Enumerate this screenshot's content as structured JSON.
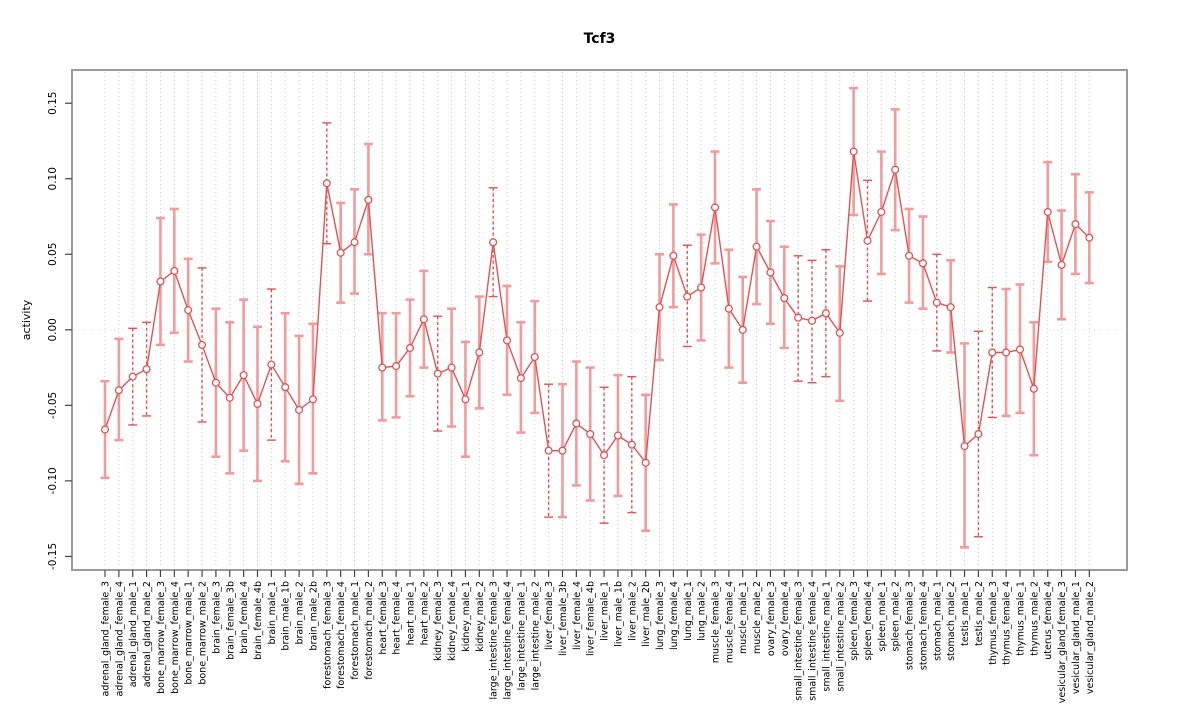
{
  "chart_data": {
    "type": "scatter",
    "subtype": "points-with-error-bars-connected-by-line",
    "title": "Tcf3",
    "xlabel": "",
    "ylabel": "activity",
    "ylim": [
      -0.159,
      0.172
    ],
    "yticks": [
      -0.15,
      -0.1,
      -0.05,
      0.0,
      0.05,
      0.1,
      0.15
    ],
    "grid": "dotted vertical gridline per category; dotted horizontal line at y=0",
    "legend": "none",
    "categories": [
      "adrenal_gland_female_3",
      "adrenal_gland_female_4",
      "adrenal_gland_male_1",
      "adrenal_gland_male_2",
      "bone_marrow_female_3",
      "bone_marrow_female_4",
      "bone_marrow_male_1",
      "bone_marrow_male_2",
      "brain_female_3",
      "brain_female_3b",
      "brain_female_4",
      "brain_female_4b",
      "brain_male_1",
      "brain_male_1b",
      "brain_male_2",
      "brain_male_2b",
      "forestomach_female_3",
      "forestomach_female_4",
      "forestomach_male_1",
      "forestomach_male_2",
      "heart_female_3",
      "heart_female_4",
      "heart_male_1",
      "heart_male_2",
      "kidney_female_3",
      "kidney_female_4",
      "kidney_male_1",
      "kidney_male_2",
      "large_intestine_female_3",
      "large_intestine_female_4",
      "large_intestine_male_1",
      "large_intestine_male_2",
      "liver_female_3",
      "liver_female_3b",
      "liver_female_4",
      "liver_female_4b",
      "liver_male_1",
      "liver_male_1b",
      "liver_male_2",
      "liver_male_2b",
      "lung_female_3",
      "lung_female_4",
      "lung_male_1",
      "lung_male_2",
      "muscle_female_3",
      "muscle_female_4",
      "muscle_male_1",
      "muscle_male_2",
      "ovary_female_3",
      "ovary_female_4",
      "small_intestine_female_3",
      "small_intestine_female_4",
      "small_intestine_male_1",
      "small_intestine_male_2",
      "spleen_female_3",
      "spleen_female_4",
      "spleen_male_1",
      "spleen_male_2",
      "stomach_female_3",
      "stomach_female_4",
      "stomach_male_1",
      "stomach_male_2",
      "testis_male_1",
      "testis_male_2",
      "thymus_female_3",
      "thymus_female_4",
      "thymus_male_1",
      "thymus_male_2",
      "uterus_female_4",
      "vesicular_gland_female_3",
      "vesicular_gland_male_1",
      "vesicular_gland_male_2"
    ],
    "values": [
      -0.066,
      -0.04,
      -0.031,
      -0.026,
      0.032,
      0.039,
      0.013,
      -0.01,
      -0.035,
      -0.045,
      -0.03,
      -0.049,
      -0.023,
      -0.038,
      -0.053,
      -0.046,
      0.097,
      0.051,
      0.058,
      0.086,
      -0.025,
      -0.024,
      -0.012,
      0.007,
      -0.029,
      -0.025,
      -0.046,
      -0.015,
      0.058,
      -0.007,
      -0.032,
      -0.018,
      -0.08,
      -0.08,
      -0.062,
      -0.069,
      -0.083,
      -0.07,
      -0.076,
      -0.088,
      0.015,
      0.049,
      0.022,
      0.028,
      0.081,
      0.014,
      0.0,
      0.055,
      0.038,
      0.021,
      0.008,
      0.006,
      0.011,
      -0.002,
      0.118,
      0.059,
      0.078,
      0.106,
      0.049,
      0.044,
      0.018,
      0.015,
      -0.077,
      -0.069,
      -0.015,
      -0.015,
      -0.013,
      -0.039,
      0.078,
      0.043,
      0.07,
      0.061
    ],
    "lower": [
      -0.098,
      -0.073,
      -0.063,
      -0.057,
      -0.01,
      -0.002,
      -0.021,
      -0.061,
      -0.084,
      -0.095,
      -0.08,
      -0.1,
      -0.073,
      -0.087,
      -0.102,
      -0.095,
      0.057,
      0.018,
      0.024,
      0.05,
      -0.06,
      -0.058,
      -0.044,
      -0.025,
      -0.067,
      -0.064,
      -0.084,
      -0.052,
      0.022,
      -0.043,
      -0.068,
      -0.055,
      -0.124,
      -0.124,
      -0.103,
      -0.113,
      -0.128,
      -0.11,
      -0.121,
      -0.133,
      -0.02,
      0.015,
      -0.011,
      -0.007,
      0.044,
      -0.025,
      -0.035,
      0.017,
      0.004,
      -0.012,
      -0.034,
      -0.035,
      -0.031,
      -0.047,
      0.076,
      0.019,
      0.037,
      0.066,
      0.018,
      0.014,
      -0.014,
      -0.015,
      -0.144,
      -0.137,
      -0.058,
      -0.057,
      -0.055,
      -0.083,
      0.045,
      0.007,
      0.037,
      0.031
    ],
    "upper": [
      -0.034,
      -0.006,
      0.001,
      0.005,
      0.074,
      0.08,
      0.047,
      0.041,
      0.014,
      0.005,
      0.02,
      0.002,
      0.027,
      0.011,
      -0.004,
      0.004,
      0.137,
      0.084,
      0.093,
      0.123,
      0.011,
      0.011,
      0.02,
      0.039,
      0.009,
      0.014,
      -0.008,
      0.022,
      0.094,
      0.029,
      0.005,
      0.019,
      -0.036,
      -0.036,
      -0.021,
      -0.025,
      -0.038,
      -0.03,
      -0.031,
      -0.043,
      0.05,
      0.083,
      0.056,
      0.063,
      0.118,
      0.053,
      0.035,
      0.093,
      0.072,
      0.055,
      0.049,
      0.046,
      0.053,
      0.042,
      0.16,
      0.099,
      0.118,
      0.146,
      0.08,
      0.075,
      0.05,
      0.046,
      -0.009,
      -0.001,
      0.028,
      0.027,
      0.03,
      0.005,
      0.111,
      0.079,
      0.103,
      0.091
    ],
    "dashed_stem_indices": [
      2,
      3,
      7,
      12,
      16,
      24,
      28,
      32,
      36,
      38,
      42,
      50,
      51,
      52,
      55,
      60,
      63,
      64
    ]
  },
  "colors": {
    "series_red": "#e25353",
    "errorbar_pale_red": "#f29b9b",
    "gridline": "#c9c9c9",
    "zero_line": "#d9d9d9",
    "box_border": "#9b9b9b",
    "tick": "#444444",
    "text": "#000000",
    "background": "#ffffff"
  }
}
